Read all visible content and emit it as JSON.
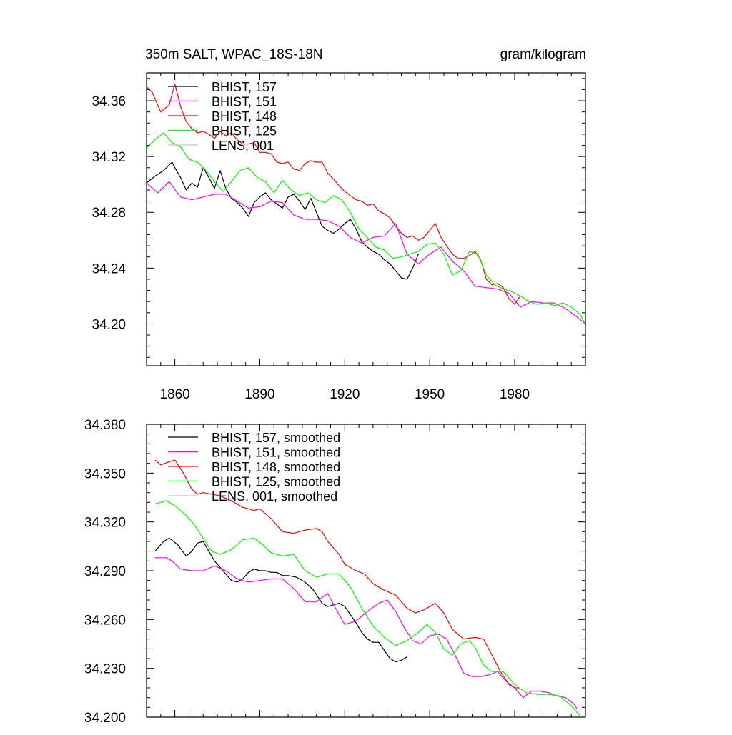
{
  "chart_data": [
    {
      "type": "line",
      "title": "350m SALT, WPAC_18S-18N",
      "units": "gram/kilogram",
      "xlim": [
        1850,
        2005
      ],
      "ylim": [
        34.17,
        34.38
      ],
      "xticks": [
        1860,
        1890,
        1920,
        1950,
        1980
      ],
      "xtick_labels": [
        "1860",
        "1890",
        "1920",
        "1950",
        "1980"
      ],
      "yticks": [
        34.2,
        34.24,
        34.28,
        34.32,
        34.36
      ],
      "ytick_labels": [
        "34.20",
        "34.24",
        "34.28",
        "34.32",
        "34.36"
      ],
      "legend_placement": "top-left",
      "series": [
        {
          "name": "BHIST, 157",
          "color": "#000000",
          "x": [
            1850,
            1853,
            1856,
            1859,
            1860,
            1862,
            1864,
            1866,
            1868,
            1870,
            1872,
            1874,
            1876,
            1878,
            1880,
            1882,
            1884,
            1886,
            1888,
            1890,
            1892,
            1894,
            1896,
            1898,
            1900,
            1902,
            1904,
            1906,
            1908,
            1910,
            1912,
            1914,
            1916,
            1918,
            1920,
            1922,
            1924,
            1926,
            1928,
            1930,
            1932,
            1934,
            1936,
            1938,
            1940,
            1942,
            1944,
            1946
          ],
          "y": [
            34.301,
            34.306,
            34.31,
            34.316,
            34.312,
            34.305,
            34.296,
            34.301,
            34.298,
            34.312,
            34.305,
            34.297,
            34.31,
            34.297,
            34.29,
            34.287,
            34.283,
            34.277,
            34.287,
            34.291,
            34.294,
            34.289,
            34.286,
            34.283,
            34.291,
            34.293,
            34.288,
            34.282,
            34.29,
            34.28,
            34.27,
            34.267,
            34.265,
            34.268,
            34.272,
            34.275,
            34.268,
            34.259,
            34.255,
            34.252,
            34.25,
            34.246,
            34.243,
            34.238,
            34.233,
            34.232,
            34.24,
            34.25
          ]
        },
        {
          "name": "BHIST, 151",
          "color": "#ff00ff",
          "x": [
            1850,
            1854,
            1858,
            1862,
            1866,
            1870,
            1874,
            1878,
            1882,
            1886,
            1890,
            1894,
            1898,
            1902,
            1906,
            1910,
            1914,
            1918,
            1922,
            1926,
            1930,
            1934,
            1938,
            1942,
            1946,
            1950,
            1954,
            1958,
            1962,
            1966,
            1970,
            1974,
            1978,
            1982,
            1986,
            1990,
            1994,
            1998,
            2002,
            2005
          ],
          "y": [
            34.301,
            34.294,
            34.302,
            34.291,
            34.289,
            34.291,
            34.293,
            34.293,
            34.288,
            34.283,
            34.284,
            34.288,
            34.287,
            34.278,
            34.275,
            34.275,
            34.274,
            34.27,
            34.262,
            34.258,
            34.262,
            34.263,
            34.272,
            34.25,
            34.243,
            34.25,
            34.255,
            34.245,
            34.238,
            34.227,
            34.226,
            34.225,
            34.222,
            34.212,
            34.216,
            34.215,
            34.215,
            34.211,
            34.205,
            34.2
          ]
        },
        {
          "name": "BHIST, 148",
          "color": "#ff0000",
          "x": [
            1850,
            1852,
            1855,
            1858,
            1860,
            1862,
            1864,
            1866,
            1868,
            1870,
            1872,
            1874,
            1876,
            1878,
            1880,
            1882,
            1884,
            1886,
            1888,
            1890,
            1892,
            1894,
            1896,
            1898,
            1900,
            1902,
            1904,
            1906,
            1908,
            1910,
            1912,
            1914,
            1916,
            1918,
            1920,
            1922,
            1924,
            1926,
            1928,
            1930,
            1932,
            1934,
            1936,
            1938,
            1940,
            1942,
            1944,
            1946,
            1948,
            1950,
            1952,
            1954,
            1956,
            1958,
            1960,
            1962,
            1964,
            1966,
            1968,
            1970,
            1972,
            1974,
            1976,
            1978,
            1980,
            1982
          ],
          "y": [
            34.37,
            34.366,
            34.352,
            34.357,
            34.372,
            34.356,
            34.345,
            34.34,
            34.337,
            34.338,
            34.336,
            34.333,
            34.338,
            34.335,
            34.337,
            34.332,
            34.329,
            34.329,
            34.33,
            34.323,
            34.323,
            34.322,
            34.316,
            34.315,
            34.316,
            34.311,
            34.31,
            34.315,
            34.317,
            34.316,
            34.316,
            34.308,
            34.304,
            34.299,
            34.295,
            34.292,
            34.289,
            34.288,
            34.285,
            34.286,
            34.281,
            34.279,
            34.276,
            34.27,
            34.265,
            34.262,
            34.263,
            34.26,
            34.262,
            34.267,
            34.272,
            34.262,
            34.256,
            34.25,
            34.247,
            34.247,
            34.249,
            34.252,
            34.246,
            34.232,
            34.228,
            34.229,
            34.226,
            34.218,
            34.214,
            34.22
          ]
        },
        {
          "name": "BHIST, 125",
          "color": "#00ff00",
          "x": [
            1850,
            1853,
            1856,
            1859,
            1862,
            1865,
            1868,
            1871,
            1874,
            1877,
            1880,
            1883,
            1886,
            1889,
            1892,
            1895,
            1898,
            1901,
            1904,
            1907,
            1910,
            1913,
            1916,
            1919,
            1922,
            1925,
            1928,
            1931,
            1934,
            1937,
            1940,
            1943,
            1946,
            1949,
            1952,
            1955,
            1958,
            1961,
            1964,
            1967,
            1970,
            1973,
            1976,
            1979,
            1982,
            1985,
            1988,
            1991,
            1994,
            1997,
            2000,
            2003,
            2005
          ],
          "y": [
            34.326,
            34.332,
            34.337,
            34.33,
            34.327,
            34.318,
            34.316,
            34.31,
            34.302,
            34.295,
            34.302,
            34.31,
            34.312,
            34.305,
            34.302,
            34.294,
            34.303,
            34.296,
            34.292,
            34.294,
            34.289,
            34.287,
            34.292,
            34.289,
            34.28,
            34.268,
            34.262,
            34.255,
            34.253,
            34.247,
            34.248,
            34.25,
            34.252,
            34.257,
            34.258,
            34.25,
            34.235,
            34.238,
            34.252,
            34.25,
            34.235,
            34.228,
            34.225,
            34.223,
            34.22,
            34.216,
            34.214,
            34.215,
            34.213,
            34.215,
            34.212,
            34.207,
            34.2
          ]
        },
        {
          "name": "LENS, 001",
          "color": "#c8c8c8",
          "x": [],
          "y": []
        }
      ]
    },
    {
      "type": "line",
      "title": "",
      "xlim": [
        1850,
        2005
      ],
      "ylim": [
        34.2,
        34.38
      ],
      "xticks": [
        1860,
        1890,
        1920,
        1950,
        1980
      ],
      "yticks": [
        34.2,
        34.23,
        34.26,
        34.29,
        34.32,
        34.35,
        34.38
      ],
      "ytick_labels": [
        "34.200",
        "34.230",
        "34.260",
        "34.290",
        "34.320",
        "34.350",
        "34.380"
      ],
      "legend_placement": "top-left",
      "series": [
        {
          "name": "BHIST, 157, smoothed",
          "color": "#000000",
          "x": [
            1853,
            1856,
            1858,
            1861,
            1864,
            1866,
            1868,
            1870,
            1872,
            1874,
            1876,
            1878,
            1880,
            1882,
            1884,
            1886,
            1888,
            1890,
            1892,
            1894,
            1896,
            1898,
            1900,
            1903,
            1906,
            1909,
            1912,
            1914,
            1916,
            1918,
            1920,
            1922,
            1924,
            1926,
            1928,
            1930,
            1932,
            1934,
            1936,
            1938,
            1940,
            1942
          ],
          "y": [
            34.302,
            34.308,
            34.31,
            34.306,
            34.299,
            34.302,
            34.307,
            34.308,
            34.302,
            34.296,
            34.292,
            34.288,
            34.284,
            34.283,
            34.285,
            34.289,
            34.291,
            34.29,
            34.29,
            34.289,
            34.289,
            34.287,
            34.287,
            34.286,
            34.283,
            34.278,
            34.27,
            34.268,
            34.269,
            34.27,
            34.268,
            34.263,
            34.258,
            34.252,
            34.248,
            34.246,
            34.246,
            34.241,
            34.236,
            34.234,
            34.235,
            34.237
          ]
        },
        {
          "name": "BHIST, 151, smoothed",
          "color": "#ff00ff",
          "x": [
            1853,
            1857,
            1859,
            1862,
            1866,
            1870,
            1874,
            1878,
            1882,
            1886,
            1890,
            1894,
            1898,
            1902,
            1906,
            1910,
            1914,
            1918,
            1920,
            1924,
            1928,
            1932,
            1935,
            1938,
            1941,
            1944,
            1947,
            1950,
            1953,
            1956,
            1959,
            1962,
            1965,
            1968,
            1971,
            1974,
            1977,
            1980,
            1983,
            1986,
            1989,
            1992,
            1995,
            1998,
            2001,
            2002
          ],
          "y": [
            34.298,
            34.298,
            34.296,
            34.291,
            34.29,
            34.29,
            34.293,
            34.29,
            34.285,
            34.283,
            34.284,
            34.285,
            34.285,
            34.279,
            34.271,
            34.271,
            34.276,
            34.263,
            34.257,
            34.259,
            34.265,
            34.27,
            34.272,
            34.265,
            34.255,
            34.247,
            34.245,
            34.25,
            34.251,
            34.248,
            34.238,
            34.227,
            34.225,
            34.225,
            34.226,
            34.228,
            34.222,
            34.218,
            34.212,
            34.216,
            34.216,
            34.215,
            34.213,
            34.212,
            34.208,
            34.205
          ]
        },
        {
          "name": "BHIST, 148, smoothed",
          "color": "#ff0000",
          "x": [
            1853,
            1855,
            1858,
            1860,
            1863,
            1866,
            1868,
            1870,
            1873,
            1876,
            1880,
            1884,
            1888,
            1890,
            1894,
            1898,
            1902,
            1906,
            1910,
            1912,
            1914,
            1918,
            1920,
            1924,
            1927,
            1930,
            1934,
            1938,
            1942,
            1945,
            1948,
            1952,
            1955,
            1958,
            1962,
            1966,
            1969,
            1972,
            1975,
            1978,
            1980,
            1982
          ],
          "y": [
            34.358,
            34.355,
            34.357,
            34.358,
            34.35,
            34.34,
            34.337,
            34.338,
            34.337,
            34.336,
            34.333,
            34.329,
            34.327,
            34.328,
            34.322,
            34.314,
            34.313,
            34.315,
            34.316,
            34.314,
            34.308,
            34.3,
            34.294,
            34.29,
            34.288,
            34.282,
            34.278,
            34.275,
            34.267,
            34.264,
            34.266,
            34.27,
            34.264,
            34.254,
            34.248,
            34.249,
            34.248,
            34.238,
            34.228,
            34.22,
            34.218,
            34.218
          ]
        },
        {
          "name": "BHIST, 125, smoothed",
          "color": "#00ff00",
          "x": [
            1853,
            1857,
            1860,
            1864,
            1867,
            1870,
            1873,
            1876,
            1880,
            1884,
            1888,
            1891,
            1894,
            1898,
            1902,
            1906,
            1910,
            1914,
            1918,
            1922,
            1926,
            1930,
            1934,
            1938,
            1942,
            1946,
            1949,
            1952,
            1955,
            1958,
            1961,
            1964,
            1966,
            1969,
            1972,
            1976,
            1980,
            1984,
            1988,
            1992,
            1996,
            2000,
            2003
          ],
          "y": [
            34.331,
            34.333,
            34.33,
            34.324,
            34.318,
            34.31,
            34.302,
            34.3,
            34.303,
            34.309,
            34.31,
            34.306,
            34.301,
            34.299,
            34.3,
            34.29,
            34.286,
            34.288,
            34.288,
            34.28,
            34.267,
            34.256,
            34.249,
            34.244,
            34.247,
            34.252,
            34.257,
            34.252,
            34.242,
            34.238,
            34.245,
            34.247,
            34.243,
            34.232,
            34.228,
            34.228,
            34.22,
            34.215,
            34.214,
            34.214,
            34.213,
            34.207,
            34.201
          ]
        },
        {
          "name": "LENS, 001, smoothed",
          "color": "#c8c8c8",
          "x": [],
          "y": []
        }
      ]
    }
  ]
}
